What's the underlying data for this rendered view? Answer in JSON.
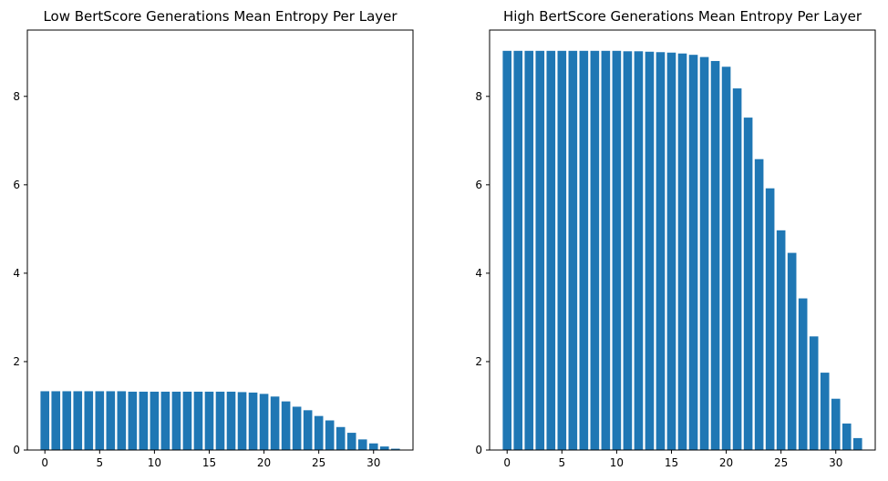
{
  "chart_data": [
    {
      "type": "bar",
      "title": "Low BertScore Generations Mean Entropy Per Layer",
      "xlabel": "",
      "ylabel": "",
      "x": [
        0,
        1,
        2,
        3,
        4,
        5,
        6,
        7,
        8,
        9,
        10,
        11,
        12,
        13,
        14,
        15,
        16,
        17,
        18,
        19,
        20,
        21,
        22,
        23,
        24,
        25,
        26,
        27,
        28,
        29,
        30,
        31,
        32
      ],
      "values": [
        1.33,
        1.33,
        1.33,
        1.33,
        1.33,
        1.33,
        1.33,
        1.33,
        1.32,
        1.32,
        1.32,
        1.32,
        1.32,
        1.32,
        1.32,
        1.32,
        1.32,
        1.32,
        1.31,
        1.3,
        1.27,
        1.21,
        1.1,
        0.98,
        0.9,
        0.77,
        0.67,
        0.52,
        0.39,
        0.24,
        0.15,
        0.08,
        0.03
      ],
      "color": "#1f77b4",
      "xlim": [
        -1.6,
        33.6
      ],
      "ylim": [
        0,
        9.5
      ],
      "xticks": [
        0,
        5,
        10,
        15,
        20,
        25,
        30
      ],
      "yticks": [
        0,
        2,
        4,
        6,
        8
      ],
      "grid": false
    },
    {
      "type": "bar",
      "title": "High BertScore Generations Mean Entropy Per Layer",
      "xlabel": "",
      "ylabel": "",
      "x": [
        0,
        1,
        2,
        3,
        4,
        5,
        6,
        7,
        8,
        9,
        10,
        11,
        12,
        13,
        14,
        15,
        16,
        17,
        18,
        19,
        20,
        21,
        22,
        23,
        24,
        25,
        26,
        27,
        28,
        29,
        30,
        31,
        32
      ],
      "values": [
        9.03,
        9.03,
        9.03,
        9.03,
        9.03,
        9.03,
        9.03,
        9.03,
        9.03,
        9.03,
        9.03,
        9.02,
        9.02,
        9.01,
        9.0,
        8.99,
        8.97,
        8.94,
        8.89,
        8.8,
        8.67,
        8.18,
        7.52,
        6.58,
        5.92,
        4.97,
        4.46,
        3.43,
        2.57,
        1.75,
        1.16,
        0.6,
        0.27
      ],
      "color": "#1f77b4",
      "xlim": [
        -1.6,
        33.6
      ],
      "ylim": [
        0,
        9.5
      ],
      "xticks": [
        0,
        5,
        10,
        15,
        20,
        25,
        30
      ],
      "yticks": [
        0,
        2,
        4,
        6,
        8
      ],
      "grid": false
    }
  ]
}
